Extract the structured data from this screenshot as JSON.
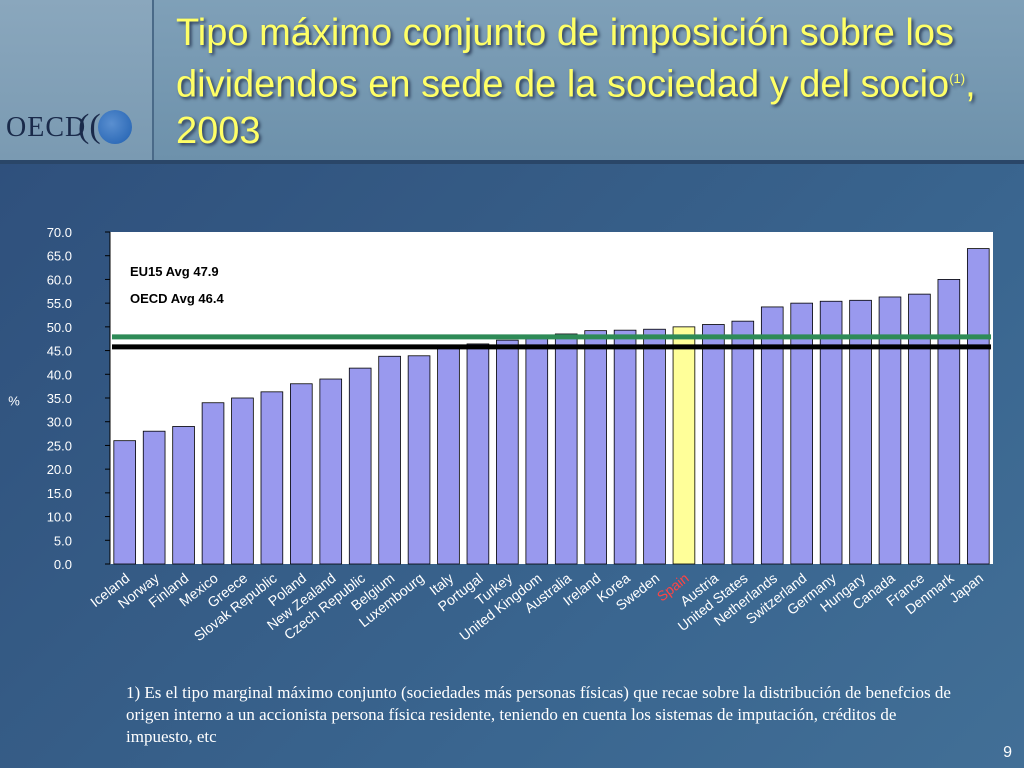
{
  "slide": {
    "title_main": "Tipo máximo conjunto de imposición sobre los dividendos en sede de la sociedad y del socio",
    "title_sup": "(1)",
    "title_after": ", 2003",
    "logo": "OECD",
    "footnote": "1) Es el tipo marginal máximo conjunto (sociedades más personas físicas) que recae sobre la distribución de benefcios de origen interno a un accionista persona física residente, teniendo en cuenta los sistemas de imputación, créditos de impuesto, etc",
    "page_number": "9"
  },
  "colors": {
    "bar": "#9999ee",
    "highlight_bar": "#ffff99",
    "eu15_line": "#2e8b57",
    "oecd_line": "#000000",
    "plot_bg": "#ffffff"
  },
  "chart_data": {
    "type": "bar",
    "ylabel": "%",
    "ylim": [
      0,
      70
    ],
    "yticks": [
      "0.0",
      "5.0",
      "10.0",
      "15.0",
      "20.0",
      "25.0",
      "30.0",
      "35.0",
      "40.0",
      "45.0",
      "50.0",
      "55.0",
      "60.0",
      "65.0",
      "70.0"
    ],
    "categories": [
      "Iceland",
      "Norway",
      "Finland",
      "Mexico",
      "Greece",
      "Slovak Republic",
      "Poland",
      "New Zealand",
      "Czech Republic",
      "Belgium",
      "Luxembourg",
      "Italy",
      "Portugal",
      "Turkey",
      "United Kingdom",
      "Australia",
      "Ireland",
      "Korea",
      "Sweden",
      "Spain",
      "Austria",
      "United States",
      "Netherlands",
      "Switzerland",
      "Germany",
      "Hungary",
      "Canada",
      "France",
      "Denmark",
      "Japan"
    ],
    "values": [
      26.0,
      28.0,
      29.0,
      34.0,
      35.0,
      36.3,
      38.0,
      39.0,
      41.3,
      43.8,
      43.9,
      45.9,
      46.4,
      47.2,
      47.5,
      48.5,
      49.2,
      49.3,
      49.5,
      50.0,
      50.5,
      51.2,
      54.2,
      55.0,
      55.4,
      55.6,
      56.3,
      56.9,
      60.0,
      66.5
    ],
    "highlight": "Spain",
    "reference_lines": [
      {
        "name": "EU15 Avg",
        "value": 47.9,
        "label": "EU15 Avg 47.9"
      },
      {
        "name": "OECD Avg",
        "value": 46.4,
        "label": "OECD Avg 46.4"
      }
    ],
    "grid": false
  }
}
